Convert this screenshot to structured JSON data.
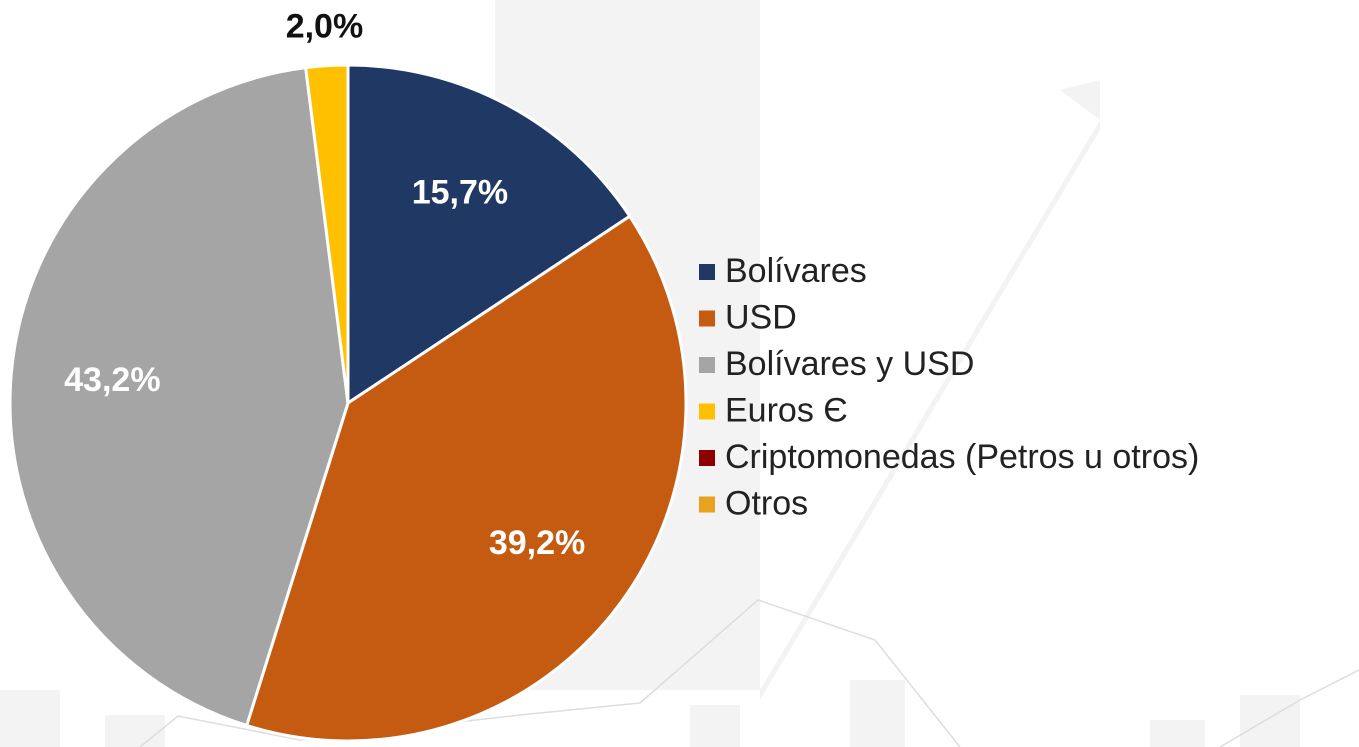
{
  "chart_data": {
    "type": "pie",
    "categories": [
      "Bolívares",
      "USD",
      "Bolívares y USD",
      "Euros Є",
      "Criptomonedas (Petros u otros)",
      "Otros"
    ],
    "values": [
      15.7,
      39.2,
      43.2,
      2.0,
      0,
      0
    ],
    "value_labels": [
      "15,7%",
      "39,2%",
      "43,2%",
      "2,0%",
      null,
      null
    ],
    "colors": [
      "#1f3864",
      "#c55a11",
      "#a5a5a5",
      "#ffc000",
      "#8b0000",
      "#e9a21f"
    ],
    "legend": "right"
  }
}
